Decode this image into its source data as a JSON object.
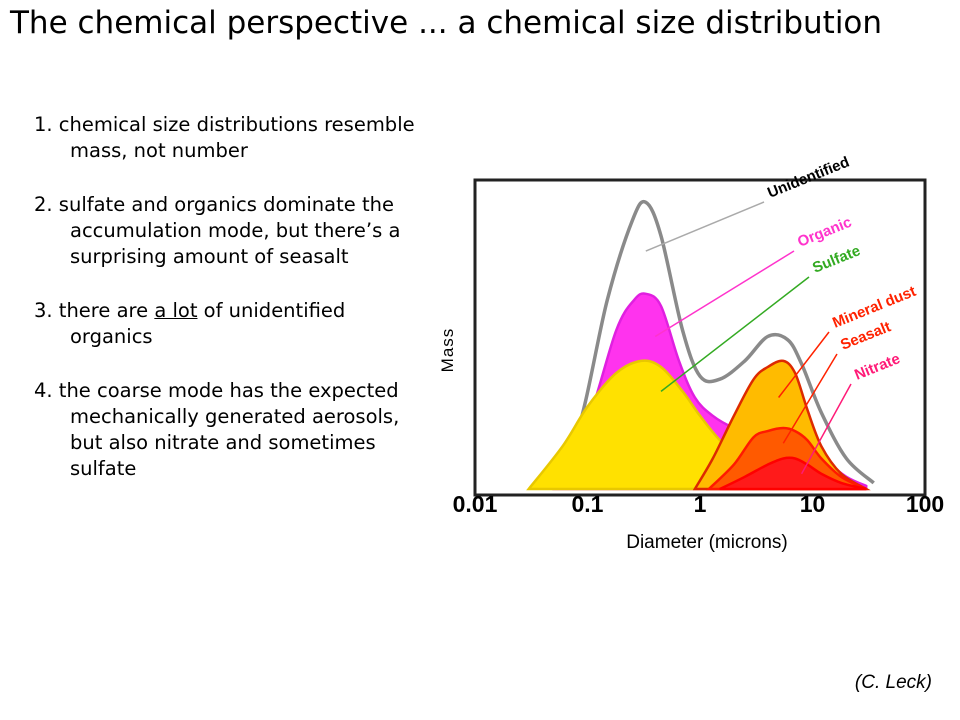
{
  "title": "The chemical perspective ... a chemical size distribution",
  "bullets": [
    {
      "text": "1. chemical size distributions resemble mass, not number"
    },
    {
      "text": "2. sulfate and organics dominate the accumulation mode, but there’s a surprising amount of seasalt"
    },
    {
      "pre": "3. there are ",
      "underlined": "a lot",
      "post": " of unidentified organics"
    },
    {
      "text": "4. the coarse mode has the expected mechanically generated aerosols, but also nitrate and sometimes sulfate"
    }
  ],
  "credit": "(C. Leck)",
  "chart_data": {
    "type": "area",
    "xlabel": "Diameter (microns)",
    "ylabel": "Mass",
    "xscale": "log",
    "xlim": [
      0.01,
      100
    ],
    "xticks": [
      {
        "label": "0.01",
        "value": 0.01
      },
      {
        "label": "0.1",
        "value": 0.1
      },
      {
        "label": "1",
        "value": 1
      },
      {
        "label": "10",
        "value": 10
      },
      {
        "label": "100",
        "value": 100
      }
    ],
    "ylim": [
      0,
      100
    ],
    "grid": false,
    "series": [
      {
        "name": "Unidentified",
        "label_color": "#000000",
        "color": "#8a8a8a",
        "fill": "none",
        "x": [
          0.04,
          0.08,
          0.15,
          0.25,
          0.33,
          0.45,
          0.7,
          1.0,
          1.5,
          2.5,
          4,
          6,
          8,
          12,
          20,
          35
        ],
        "y": [
          1,
          18,
          62,
          88,
          94,
          83,
          52,
          37,
          36,
          42,
          50,
          49,
          41,
          25,
          10,
          2
        ]
      },
      {
        "name": "Organic",
        "label_color": "#ff33cc",
        "color": "#e020e0",
        "fill": "#ff33ee",
        "x": [
          0.05,
          0.1,
          0.18,
          0.26,
          0.33,
          0.45,
          0.65,
          0.9,
          1.3,
          2,
          3,
          5,
          8,
          12,
          20,
          30
        ],
        "y": [
          1,
          22,
          52,
          62,
          64,
          60,
          42,
          30,
          24,
          20,
          18,
          16,
          13,
          10,
          4,
          1
        ]
      },
      {
        "name": "Sulfate",
        "label_color": "#33aa22",
        "color": "#e8c800",
        "fill": "#ffe100",
        "x": [
          0.03,
          0.06,
          0.1,
          0.18,
          0.3,
          0.45,
          0.7,
          1.0,
          1.5,
          2.5,
          4,
          6,
          10,
          15
        ],
        "y": [
          0,
          14,
          27,
          38,
          42,
          40,
          32,
          24,
          16,
          8,
          4,
          2,
          1,
          0
        ]
      },
      {
        "name": "Mineral dust",
        "label_color": "#ff2200",
        "color": "#dd2a00",
        "fill": "#ffbb00",
        "x": [
          0.9,
          1.3,
          2,
          3,
          4,
          5.5,
          7,
          9,
          12,
          18,
          30
        ],
        "y": [
          0,
          10,
          24,
          36,
          40,
          42,
          38,
          26,
          14,
          5,
          0
        ]
      },
      {
        "name": "Seasalt",
        "label_color": "#ff2200",
        "color": "#ff1a00",
        "fill": "#ff5a00",
        "x": [
          1.2,
          2,
          3,
          4,
          5.5,
          7,
          9,
          12,
          18,
          30
        ],
        "y": [
          0,
          8,
          17,
          19,
          20,
          19,
          16,
          10,
          4,
          0
        ]
      },
      {
        "name": "Nitrate",
        "label_color": "#ff1a77",
        "color": "#ff0000",
        "fill": "#ff1a1a",
        "x": [
          1.5,
          2.5,
          4,
          5.5,
          7,
          9,
          12,
          18,
          30
        ],
        "y": [
          0,
          4,
          8,
          10,
          10,
          8,
          5,
          2,
          0
        ]
      }
    ]
  }
}
